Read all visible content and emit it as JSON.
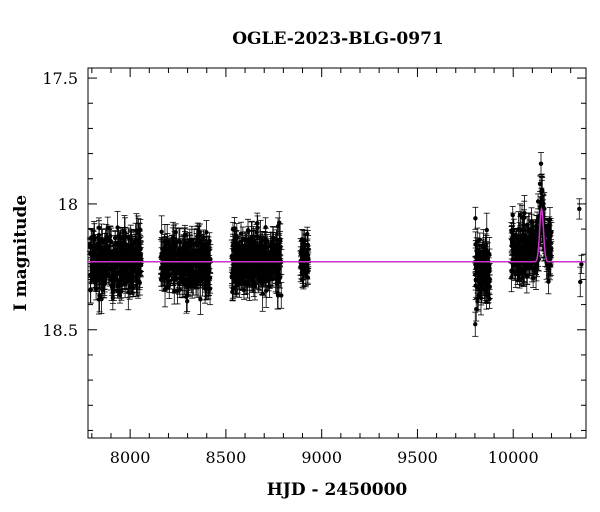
{
  "chart_data": {
    "type": "scatter",
    "title": "OGLE-2023-BLG-0971",
    "xlabel": "HJD - 2450000",
    "ylabel": "I magnitude",
    "xlim": [
      7780,
      10380
    ],
    "ylim": [
      18.93,
      17.46
    ],
    "y_inverted": true,
    "x_ticks": [
      8000,
      8500,
      9000,
      9500,
      10000
    ],
    "y_ticks": [
      17.5,
      18,
      18.5
    ],
    "x_tick_labels": [
      "8000",
      "8500",
      "9000",
      "9500",
      "10000"
    ],
    "y_tick_labels": [
      "17.5",
      "18",
      "18.5"
    ],
    "grid": false,
    "legend": "none",
    "data_color": "#000000",
    "model_color": "#cc33cc",
    "baseline_magnitude": 18.23,
    "data_seasons": [
      {
        "hjd_start": 7790,
        "hjd_end": 8060,
        "mean_mag": 18.23,
        "scatter_mag": 0.07
      },
      {
        "hjd_start": 8160,
        "hjd_end": 8420,
        "mean_mag": 18.23,
        "scatter_mag": 0.07
      },
      {
        "hjd_start": 8530,
        "hjd_end": 8790,
        "mean_mag": 18.23,
        "scatter_mag": 0.07
      },
      {
        "hjd_start": 8890,
        "hjd_end": 8930,
        "mean_mag": 18.22,
        "scatter_mag": 0.06
      },
      {
        "hjd_start": 9800,
        "hjd_end": 9880,
        "mean_mag": 18.27,
        "scatter_mag": 0.08
      },
      {
        "hjd_start": 9990,
        "hjd_end": 10200,
        "mean_mag": 18.18,
        "scatter_mag": 0.07
      }
    ],
    "event_points": [
      {
        "hjd": 10130,
        "mag": 17.99
      },
      {
        "hjd": 10140,
        "mag": 17.92
      },
      {
        "hjd": 10145,
        "mag": 17.84
      },
      {
        "hjd": 10150,
        "mag": 17.95
      },
      {
        "hjd": 10158,
        "mag": 18.05
      },
      {
        "hjd": 10162,
        "mag": 18.02
      },
      {
        "hjd": 10170,
        "mag": 18.12
      },
      {
        "hjd": 10185,
        "mag": 18.15
      },
      {
        "hjd": 10345,
        "mag": 18.02
      },
      {
        "hjd": 10350,
        "mag": 18.31
      },
      {
        "hjd": 10356,
        "mag": 18.24
      }
    ],
    "model_curve": {
      "peak_hjd": 10148,
      "peak_magnitude": 18.02,
      "width_days": 14
    }
  }
}
